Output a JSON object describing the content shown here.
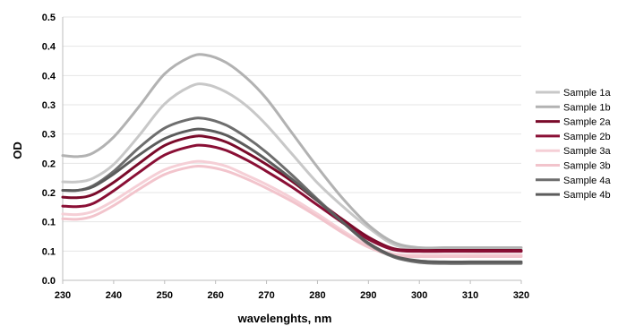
{
  "chart_data": {
    "type": "line",
    "title": "",
    "xlabel": "wavelenghts, nm",
    "ylabel": "OD",
    "xlim": [
      230,
      320
    ],
    "ylim": [
      0,
      0.5
    ],
    "grid": true,
    "legend_position": "right",
    "x_ticks": [
      "230",
      "240",
      "250",
      "260",
      "270",
      "280",
      "290",
      "300",
      "310",
      "320"
    ],
    "y_ticks": [
      "0.0",
      "0.1",
      "0.1",
      "0.2",
      "0.2",
      "0.3",
      "0.3",
      "0.4",
      "0.4",
      "0.5"
    ],
    "x": [
      230,
      233,
      236,
      240,
      245,
      250,
      255,
      258,
      262,
      266,
      270,
      275,
      280,
      285,
      290,
      295,
      300,
      305,
      310,
      315,
      320
    ],
    "series": [
      {
        "name": "Sample 1a",
        "color": "#c8c8c8",
        "values": [
          0.187,
          0.187,
          0.194,
          0.22,
          0.275,
          0.335,
          0.368,
          0.372,
          0.358,
          0.332,
          0.295,
          0.24,
          0.185,
          0.14,
          0.1,
          0.068,
          0.058,
          0.056,
          0.055,
          0.055,
          0.055
        ]
      },
      {
        "name": "Sample 1b",
        "color": "#b2b2b2",
        "values": [
          0.237,
          0.235,
          0.242,
          0.272,
          0.33,
          0.392,
          0.424,
          0.428,
          0.414,
          0.385,
          0.345,
          0.28,
          0.215,
          0.155,
          0.105,
          0.072,
          0.062,
          0.062,
          0.062,
          0.062,
          0.062
        ]
      },
      {
        "name": "Sample 2a",
        "color": "#7a0a2a",
        "values": [
          0.158,
          0.157,
          0.163,
          0.186,
          0.222,
          0.256,
          0.272,
          0.273,
          0.263,
          0.243,
          0.22,
          0.188,
          0.151,
          0.115,
          0.082,
          0.06,
          0.057,
          0.057,
          0.057,
          0.057,
          0.057
        ]
      },
      {
        "name": "Sample 2b",
        "color": "#8a0f35",
        "values": [
          0.141,
          0.14,
          0.146,
          0.17,
          0.205,
          0.238,
          0.254,
          0.256,
          0.247,
          0.229,
          0.207,
          0.177,
          0.143,
          0.109,
          0.078,
          0.058,
          0.055,
          0.055,
          0.055,
          0.055,
          0.055
        ]
      },
      {
        "name": "Sample 3a",
        "color": "#f5cfd6",
        "values": [
          0.126,
          0.125,
          0.131,
          0.151,
          0.182,
          0.21,
          0.224,
          0.225,
          0.217,
          0.2,
          0.182,
          0.156,
          0.126,
          0.094,
          0.066,
          0.05,
          0.048,
          0.048,
          0.048,
          0.048,
          0.048
        ]
      },
      {
        "name": "Sample 3b",
        "color": "#f2c4cc",
        "values": [
          0.117,
          0.116,
          0.122,
          0.142,
          0.173,
          0.201,
          0.215,
          0.216,
          0.208,
          0.193,
          0.175,
          0.15,
          0.121,
          0.09,
          0.063,
          0.047,
          0.045,
          0.045,
          0.045,
          0.045,
          0.045
        ]
      },
      {
        "name": "Sample 4a",
        "color": "#6e6e6e",
        "values": [
          0.171,
          0.171,
          0.18,
          0.207,
          0.252,
          0.289,
          0.306,
          0.307,
          0.295,
          0.272,
          0.243,
          0.2,
          0.154,
          0.11,
          0.069,
          0.044,
          0.034,
          0.032,
          0.032,
          0.032,
          0.032
        ]
      },
      {
        "name": "Sample 4b",
        "color": "#5c5c5c",
        "values": [
          0.171,
          0.171,
          0.178,
          0.202,
          0.238,
          0.269,
          0.285,
          0.286,
          0.276,
          0.255,
          0.229,
          0.192,
          0.151,
          0.11,
          0.071,
          0.046,
          0.037,
          0.035,
          0.035,
          0.035,
          0.035
        ]
      }
    ]
  }
}
